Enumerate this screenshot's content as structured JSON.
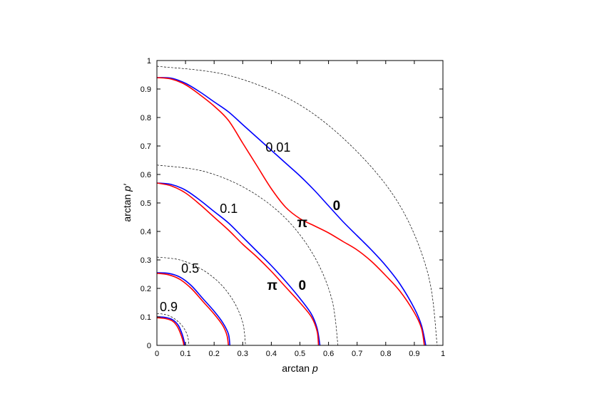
{
  "chart_data": {
    "type": "line",
    "title": "",
    "xlabel": "arctan p",
    "ylabel": "arctan p′",
    "xlim": [
      0,
      1
    ],
    "ylim": [
      0,
      1
    ],
    "x_ticks": [
      "0",
      "0.1",
      "0.2",
      "0.3",
      "0.4",
      "0.5",
      "0.6",
      "0.7",
      "0.8",
      "0.9",
      "1"
    ],
    "y_ticks": [
      "0",
      "0.1",
      "0.2",
      "0.3",
      "0.4",
      "0.5",
      "0.6",
      "0.7",
      "0.8",
      "0.9",
      "1"
    ],
    "grid": false,
    "legend": "none",
    "colors": {
      "zero": "#0000ff",
      "pi": "#ff0000",
      "reference": "#000000"
    },
    "series": [
      {
        "group": "0.01",
        "kind": "reference",
        "color": "#000000",
        "points": [
          [
            0,
            0.98
          ],
          [
            0.25,
            0.948
          ],
          [
            0.49,
            0.85
          ],
          [
            0.69,
            0.69
          ],
          [
            0.85,
            0.49
          ],
          [
            0.948,
            0.25
          ],
          [
            0.98,
            0
          ]
        ]
      },
      {
        "group": "0.01",
        "kind": "zero",
        "color": "#0000ff",
        "points": [
          [
            0,
            0.94
          ],
          [
            0.05,
            0.938
          ],
          [
            0.1,
            0.92
          ],
          [
            0.15,
            0.89
          ],
          [
            0.2,
            0.855
          ],
          [
            0.25,
            0.82
          ],
          [
            0.3,
            0.775
          ],
          [
            0.35,
            0.73
          ],
          [
            0.4,
            0.685
          ],
          [
            0.45,
            0.64
          ],
          [
            0.5,
            0.595
          ],
          [
            0.55,
            0.545
          ],
          [
            0.6,
            0.49
          ],
          [
            0.65,
            0.435
          ],
          [
            0.7,
            0.385
          ],
          [
            0.75,
            0.335
          ],
          [
            0.8,
            0.28
          ],
          [
            0.85,
            0.215
          ],
          [
            0.9,
            0.13
          ],
          [
            0.925,
            0.07
          ],
          [
            0.94,
            0
          ]
        ]
      },
      {
        "group": "0.01",
        "kind": "pi",
        "color": "#ff0000",
        "points": [
          [
            0,
            0.94
          ],
          [
            0.05,
            0.935
          ],
          [
            0.1,
            0.915
          ],
          [
            0.15,
            0.88
          ],
          [
            0.2,
            0.84
          ],
          [
            0.25,
            0.79
          ],
          [
            0.3,
            0.71
          ],
          [
            0.35,
            0.63
          ],
          [
            0.4,
            0.55
          ],
          [
            0.45,
            0.485
          ],
          [
            0.5,
            0.445
          ],
          [
            0.55,
            0.42
          ],
          [
            0.6,
            0.395
          ],
          [
            0.65,
            0.365
          ],
          [
            0.7,
            0.335
          ],
          [
            0.75,
            0.295
          ],
          [
            0.8,
            0.245
          ],
          [
            0.85,
            0.19
          ],
          [
            0.9,
            0.115
          ],
          [
            0.925,
            0.06
          ],
          [
            0.935,
            0
          ]
        ]
      },
      {
        "group": "0.1",
        "kind": "reference",
        "color": "#000000",
        "points": [
          [
            0,
            0.633
          ],
          [
            0.164,
            0.611
          ],
          [
            0.316,
            0.548
          ],
          [
            0.448,
            0.448
          ],
          [
            0.548,
            0.316
          ],
          [
            0.611,
            0.164
          ],
          [
            0.633,
            0
          ]
        ]
      },
      {
        "group": "0.1",
        "kind": "zero",
        "color": "#0000ff",
        "points": [
          [
            0,
            0.57
          ],
          [
            0.05,
            0.565
          ],
          [
            0.1,
            0.545
          ],
          [
            0.15,
            0.51
          ],
          [
            0.2,
            0.47
          ],
          [
            0.25,
            0.43
          ],
          [
            0.3,
            0.38
          ],
          [
            0.35,
            0.33
          ],
          [
            0.4,
            0.28
          ],
          [
            0.45,
            0.225
          ],
          [
            0.5,
            0.165
          ],
          [
            0.54,
            0.11
          ],
          [
            0.56,
            0.06
          ],
          [
            0.57,
            0
          ]
        ]
      },
      {
        "group": "0.1",
        "kind": "pi",
        "color": "#ff0000",
        "points": [
          [
            0,
            0.57
          ],
          [
            0.05,
            0.56
          ],
          [
            0.1,
            0.535
          ],
          [
            0.15,
            0.495
          ],
          [
            0.2,
            0.45
          ],
          [
            0.25,
            0.405
          ],
          [
            0.3,
            0.355
          ],
          [
            0.35,
            0.31
          ],
          [
            0.4,
            0.26
          ],
          [
            0.45,
            0.205
          ],
          [
            0.5,
            0.15
          ],
          [
            0.54,
            0.1
          ],
          [
            0.56,
            0.05
          ],
          [
            0.565,
            0
          ]
        ]
      },
      {
        "group": "0.5",
        "kind": "reference",
        "color": "#000000",
        "points": [
          [
            0,
            0.31
          ],
          [
            0.08,
            0.3
          ],
          [
            0.155,
            0.268
          ],
          [
            0.219,
            0.219
          ],
          [
            0.268,
            0.155
          ],
          [
            0.3,
            0.08
          ],
          [
            0.31,
            0
          ]
        ]
      },
      {
        "group": "0.5",
        "kind": "zero",
        "color": "#0000ff",
        "points": [
          [
            0,
            0.255
          ],
          [
            0.04,
            0.253
          ],
          [
            0.08,
            0.24
          ],
          [
            0.12,
            0.21
          ],
          [
            0.16,
            0.165
          ],
          [
            0.2,
            0.12
          ],
          [
            0.23,
            0.08
          ],
          [
            0.25,
            0.04
          ],
          [
            0.255,
            0
          ]
        ]
      },
      {
        "group": "0.5",
        "kind": "pi",
        "color": "#ff0000",
        "points": [
          [
            0,
            0.253
          ],
          [
            0.04,
            0.248
          ],
          [
            0.08,
            0.232
          ],
          [
            0.12,
            0.2
          ],
          [
            0.16,
            0.155
          ],
          [
            0.2,
            0.11
          ],
          [
            0.23,
            0.07
          ],
          [
            0.245,
            0.035
          ],
          [
            0.25,
            0
          ]
        ]
      },
      {
        "group": "0.9",
        "kind": "reference",
        "color": "#000000",
        "points": [
          [
            0,
            0.112
          ],
          [
            0.03,
            0.108
          ],
          [
            0.056,
            0.097
          ],
          [
            0.079,
            0.079
          ],
          [
            0.097,
            0.056
          ],
          [
            0.108,
            0.03
          ],
          [
            0.112,
            0
          ]
        ]
      },
      {
        "group": "0.9",
        "kind": "zero",
        "color": "#0000ff",
        "points": [
          [
            0,
            0.1
          ],
          [
            0.03,
            0.098
          ],
          [
            0.055,
            0.09
          ],
          [
            0.075,
            0.07
          ],
          [
            0.088,
            0.04
          ],
          [
            0.095,
            0.015
          ],
          [
            0.097,
            0
          ]
        ]
      },
      {
        "group": "0.9",
        "kind": "pi",
        "color": "#ff0000",
        "points": [
          [
            0,
            0.097
          ],
          [
            0.03,
            0.094
          ],
          [
            0.055,
            0.085
          ],
          [
            0.072,
            0.065
          ],
          [
            0.085,
            0.035
          ],
          [
            0.092,
            0.012
          ],
          [
            0.094,
            0
          ]
        ]
      }
    ],
    "annotations": [
      {
        "text": "0.01",
        "x": 0.38,
        "y": 0.68,
        "style": "normal"
      },
      {
        "text": "0.1",
        "x": 0.22,
        "y": 0.465,
        "style": "normal"
      },
      {
        "text": "0.5",
        "x": 0.085,
        "y": 0.255,
        "style": "normal"
      },
      {
        "text": "0.9",
        "x": 0.01,
        "y": 0.12,
        "style": "normal"
      },
      {
        "text": "0",
        "x": 0.615,
        "y": 0.475,
        "style": "bold"
      },
      {
        "text": "π",
        "x": 0.49,
        "y": 0.415,
        "style": "bold"
      },
      {
        "text": "π",
        "x": 0.385,
        "y": 0.195,
        "style": "bold"
      },
      {
        "text": "0",
        "x": 0.495,
        "y": 0.195,
        "style": "bold"
      }
    ]
  }
}
